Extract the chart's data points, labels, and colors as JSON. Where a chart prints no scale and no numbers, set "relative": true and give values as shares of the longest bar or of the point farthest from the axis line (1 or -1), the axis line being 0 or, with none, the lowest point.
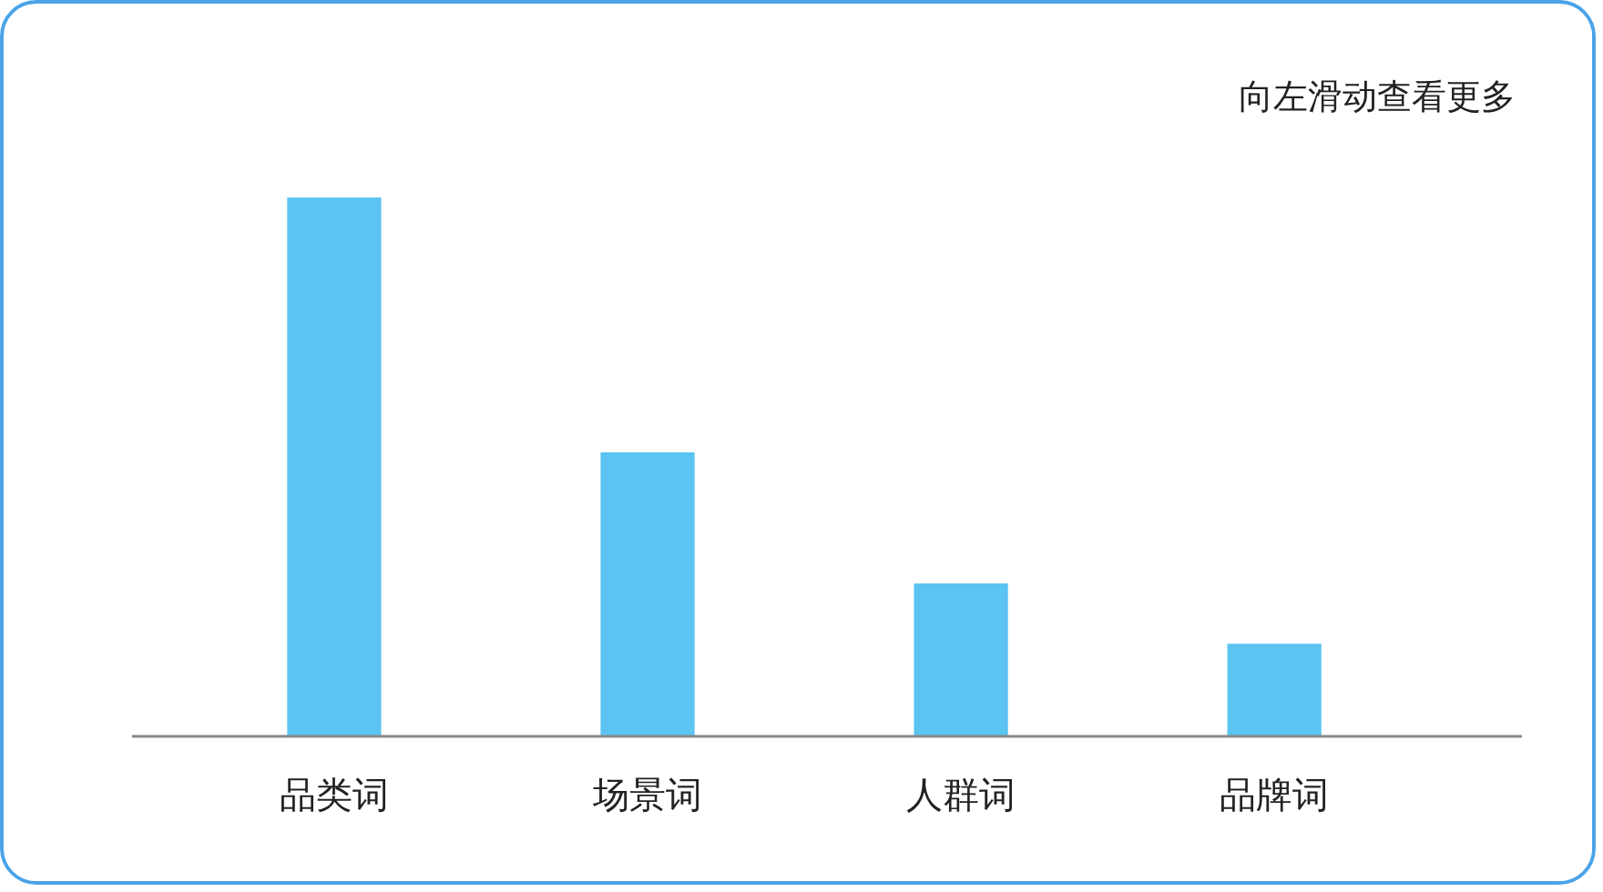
{
  "chart_data": {
    "type": "bar",
    "relative": true,
    "categories": [
      "品类词",
      "场景词",
      "人群词",
      "品牌词"
    ],
    "values": [
      1,
      0.527,
      0.284,
      0.172
    ],
    "color": "#5bc4f1",
    "annotations": [
      "向左滑动查看更多"
    ],
    "grid": false
  }
}
